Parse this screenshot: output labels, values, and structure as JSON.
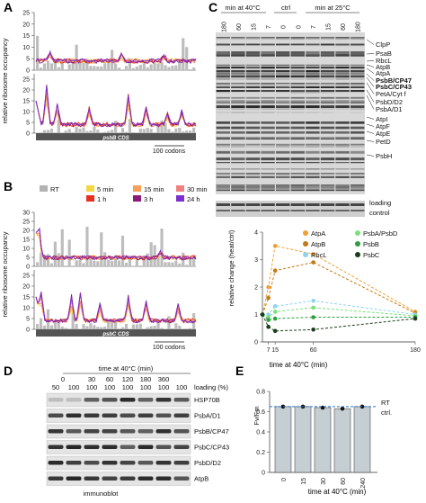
{
  "panels": {
    "A": {
      "letter": "A",
      "ylabel": "relative ribosome occupancy",
      "cds": "psbB CDS",
      "scale": "100 codons",
      "yticks_top": [
        "0",
        "5",
        "10",
        "15",
        "20",
        "25"
      ],
      "yticks_bot": [
        "0",
        "5",
        "10",
        "15",
        "20",
        "25"
      ]
    },
    "B": {
      "letter": "B",
      "ylabel": "relative ribosome occupancy",
      "cds": "psbC CDS",
      "scale": "100 codons",
      "yticks_top": [
        "0",
        "5",
        "10",
        "15",
        "20",
        "25",
        "30"
      ],
      "yticks_bot": [
        "0",
        "5",
        "10",
        "15",
        "20",
        "25"
      ],
      "legend": [
        {
          "label": "RT",
          "color": "#b3b3b3"
        },
        {
          "label": "5 min",
          "color": "#f5d743"
        },
        {
          "label": "15 min",
          "color": "#f5a05a"
        },
        {
          "label": "30 min",
          "color": "#f08080"
        },
        {
          "label": "1 h",
          "color": "#e8301e"
        },
        {
          "label": "3 h",
          "color": "#8b1a7a"
        },
        {
          "label": "24 h",
          "color": "#7b2fd0"
        }
      ]
    },
    "C": {
      "letter": "C",
      "hdr_40": "min at 40°C",
      "hdr_ctrl": "ctrl",
      "hdr_25": "min at 25°C",
      "lanes": [
        "180",
        "60",
        "15",
        "7",
        "0",
        "0",
        "7",
        "15",
        "60",
        "180"
      ],
      "bands": [
        "ClpP",
        "PsaB",
        "RbcL",
        "AtpB",
        "AtpA",
        "PsbB/CP47",
        "PsbC/CP43",
        "PetA/Cyt f",
        "PsbD/D2",
        "PsbA/D1",
        "AtpI",
        "AtpF",
        "AtpE",
        "PetD",
        "PsbH"
      ],
      "bold_bands": [
        "PsbB/CP47",
        "PsbC/CP43"
      ],
      "loading": "loading control"
    },
    "C2": {
      "ylabel": "relative change (heat/ctrl)",
      "xlabel": "time at 40°C (min)",
      "xticks": [
        "7",
        "15",
        "60",
        "180"
      ],
      "yticks": [
        "0",
        "1",
        "2",
        "3",
        "4"
      ]
    },
    "D": {
      "letter": "D",
      "header": "time at 40°C (min)",
      "times": [
        "0",
        "30",
        "60",
        "120",
        "180",
        "360"
      ],
      "loading_label": "loading (%)",
      "loading_vals": [
        "50",
        "100",
        "100",
        "100",
        "100",
        "100",
        "100",
        "100"
      ],
      "rows": [
        "HSP70B",
        "PsbA/D1",
        "PsbB/CP47",
        "PsbC/CP43",
        "PsbD/D2",
        "AtpB"
      ],
      "footer": "immunoblot"
    },
    "E": {
      "letter": "E",
      "ylabel": "Fv/Fm",
      "xlabel": "time at 40°C (min)",
      "xticks": [
        "0",
        "15",
        "30",
        "60",
        "240"
      ],
      "yticks": [
        "0",
        "0.2",
        "0.4",
        "0.6",
        "0.8"
      ],
      "ref_label": "RT\nctrl."
    }
  },
  "chart_data": [
    {
      "type": "line",
      "panel": "C",
      "x": [
        0,
        7,
        15,
        60,
        180
      ],
      "xlim": [
        0,
        180
      ],
      "ylim": [
        0,
        4
      ],
      "xlabel": "time at 40°C (min)",
      "ylabel": "relative change (heat/ctrl)",
      "series": [
        {
          "name": "AtpA",
          "color": "#f0a030",
          "values": [
            1,
            2.0,
            3.5,
            3.2,
            1.1
          ]
        },
        {
          "name": "AtpB",
          "color": "#c07a1a",
          "values": [
            1,
            1.6,
            2.6,
            2.9,
            1.05
          ]
        },
        {
          "name": "RbcL",
          "color": "#8fd3f0",
          "values": [
            1,
            1.0,
            1.3,
            1.5,
            1.0
          ]
        },
        {
          "name": "PsbA/PsbD",
          "color": "#7be07b",
          "values": [
            1,
            0.9,
            1.1,
            1.25,
            0.95
          ]
        },
        {
          "name": "PsbB",
          "color": "#2e9e40",
          "values": [
            1,
            0.8,
            0.85,
            0.9,
            0.9
          ]
        },
        {
          "name": "PsbC",
          "color": "#1a3d1a",
          "values": [
            1,
            0.55,
            0.4,
            0.45,
            0.85
          ]
        }
      ]
    },
    {
      "type": "bar",
      "panel": "E",
      "categories": [
        "0",
        "15",
        "30",
        "60",
        "240"
      ],
      "values": [
        0.65,
        0.65,
        0.64,
        0.63,
        0.65
      ],
      "ylim": [
        0,
        0.8
      ],
      "reference": 0.65,
      "xlabel": "time at 40°C (min)",
      "ylabel": "Fv/Fm"
    }
  ]
}
